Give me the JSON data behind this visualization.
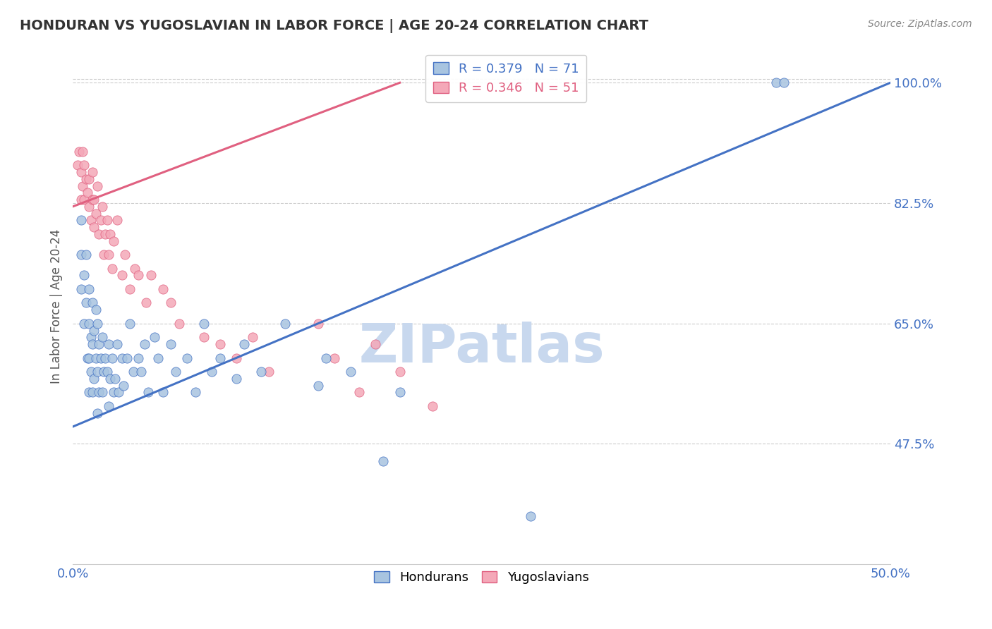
{
  "title": "HONDURAN VS YUGOSLAVIAN IN LABOR FORCE | AGE 20-24 CORRELATION CHART",
  "source": "Source: ZipAtlas.com",
  "ylabel": "In Labor Force | Age 20-24",
  "xlim": [
    0.0,
    0.5
  ],
  "ylim": [
    0.3,
    1.05
  ],
  "xticks": [
    0.0,
    0.05,
    0.1,
    0.15,
    0.2,
    0.25,
    0.3,
    0.35,
    0.4,
    0.45,
    0.5
  ],
  "xticklabels": [
    "0.0%",
    "",
    "",
    "",
    "",
    "",
    "",
    "",
    "",
    "",
    "50.0%"
  ],
  "yticks": [
    0.475,
    0.65,
    0.825,
    1.0
  ],
  "yticklabels": [
    "47.5%",
    "65.0%",
    "82.5%",
    "100.0%"
  ],
  "honduran_color": "#a8c4e0",
  "yugoslavian_color": "#f4a8b8",
  "trend_honduran_color": "#4472c4",
  "trend_yugoslavian_color": "#e06080",
  "legend_R_honduran": "R = 0.379",
  "legend_N_honduran": "N = 71",
  "legend_R_yugoslavian": "R = 0.346",
  "legend_N_yugoslavian": "N = 51",
  "trend_honduran_x0": 0.0,
  "trend_honduran_y0": 0.5,
  "trend_honduran_x1": 0.5,
  "trend_honduran_y1": 1.0,
  "trend_yugoslavian_x0": 0.0,
  "trend_yugoslavian_y0": 0.82,
  "trend_yugoslavian_x1": 0.2,
  "trend_yugoslavian_y1": 1.0,
  "honduran_x": [
    0.005,
    0.005,
    0.005,
    0.007,
    0.007,
    0.008,
    0.008,
    0.009,
    0.01,
    0.01,
    0.01,
    0.01,
    0.011,
    0.011,
    0.012,
    0.012,
    0.012,
    0.013,
    0.013,
    0.014,
    0.014,
    0.015,
    0.015,
    0.015,
    0.016,
    0.016,
    0.017,
    0.018,
    0.018,
    0.019,
    0.02,
    0.021,
    0.022,
    0.022,
    0.023,
    0.024,
    0.025,
    0.026,
    0.027,
    0.028,
    0.03,
    0.031,
    0.033,
    0.035,
    0.037,
    0.04,
    0.042,
    0.044,
    0.046,
    0.05,
    0.052,
    0.055,
    0.06,
    0.063,
    0.07,
    0.075,
    0.08,
    0.085,
    0.09,
    0.1,
    0.105,
    0.115,
    0.13,
    0.15,
    0.155,
    0.17,
    0.19,
    0.2,
    0.28,
    0.43,
    0.435
  ],
  "honduran_y": [
    0.7,
    0.75,
    0.8,
    0.65,
    0.72,
    0.68,
    0.75,
    0.6,
    0.55,
    0.6,
    0.65,
    0.7,
    0.58,
    0.63,
    0.55,
    0.62,
    0.68,
    0.57,
    0.64,
    0.6,
    0.67,
    0.52,
    0.58,
    0.65,
    0.55,
    0.62,
    0.6,
    0.55,
    0.63,
    0.58,
    0.6,
    0.58,
    0.53,
    0.62,
    0.57,
    0.6,
    0.55,
    0.57,
    0.62,
    0.55,
    0.6,
    0.56,
    0.6,
    0.65,
    0.58,
    0.6,
    0.58,
    0.62,
    0.55,
    0.63,
    0.6,
    0.55,
    0.62,
    0.58,
    0.6,
    0.55,
    0.65,
    0.58,
    0.6,
    0.57,
    0.62,
    0.58,
    0.65,
    0.56,
    0.6,
    0.58,
    0.45,
    0.55,
    0.37,
    1.0,
    1.0
  ],
  "yugoslavian_x": [
    0.003,
    0.004,
    0.005,
    0.005,
    0.006,
    0.006,
    0.007,
    0.007,
    0.008,
    0.009,
    0.01,
    0.01,
    0.011,
    0.012,
    0.012,
    0.013,
    0.013,
    0.014,
    0.015,
    0.016,
    0.017,
    0.018,
    0.019,
    0.02,
    0.021,
    0.022,
    0.023,
    0.024,
    0.025,
    0.027,
    0.03,
    0.032,
    0.035,
    0.038,
    0.04,
    0.045,
    0.048,
    0.055,
    0.06,
    0.065,
    0.08,
    0.09,
    0.1,
    0.11,
    0.12,
    0.15,
    0.16,
    0.175,
    0.185,
    0.2,
    0.22
  ],
  "yugoslavian_y": [
    0.88,
    0.9,
    0.83,
    0.87,
    0.85,
    0.9,
    0.83,
    0.88,
    0.86,
    0.84,
    0.82,
    0.86,
    0.8,
    0.83,
    0.87,
    0.79,
    0.83,
    0.81,
    0.85,
    0.78,
    0.8,
    0.82,
    0.75,
    0.78,
    0.8,
    0.75,
    0.78,
    0.73,
    0.77,
    0.8,
    0.72,
    0.75,
    0.7,
    0.73,
    0.72,
    0.68,
    0.72,
    0.7,
    0.68,
    0.65,
    0.63,
    0.62,
    0.6,
    0.63,
    0.58,
    0.65,
    0.6,
    0.55,
    0.62,
    0.58,
    0.53
  ],
  "background_color": "#ffffff",
  "grid_color": "#cccccc",
  "title_color": "#333333",
  "axis_color": "#4472c4",
  "watermark": "ZIPatlas",
  "watermark_color": "#c8d8ee"
}
